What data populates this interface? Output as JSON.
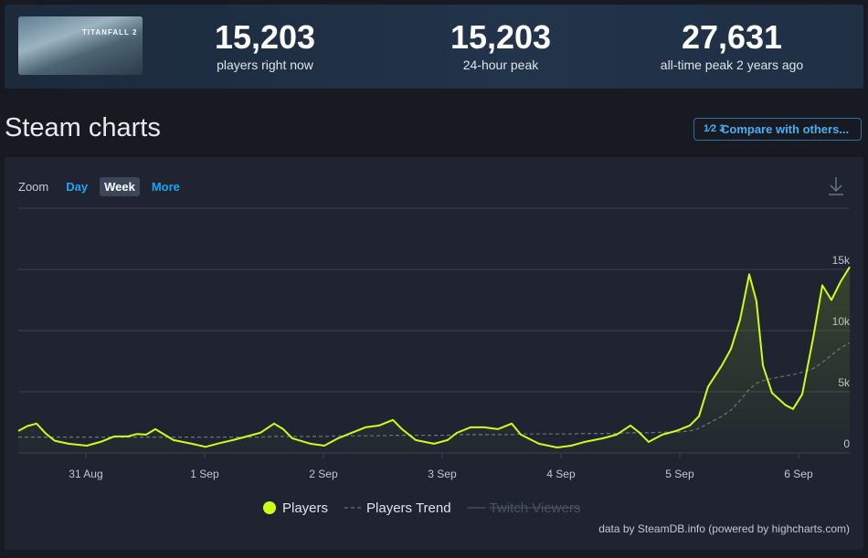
{
  "header": {
    "image_caption": "TITANFALL 2",
    "stats": [
      {
        "value": "15,203",
        "label": "players right now"
      },
      {
        "value": "15,203",
        "label": "24-hour peak"
      },
      {
        "value": "27,631",
        "label": "all-time peak 2 years ago"
      }
    ]
  },
  "page_title": "Steam charts",
  "compare_button": {
    "icon": "1⁄2 3",
    "label": "Compare with others..."
  },
  "zoom": {
    "label": "Zoom",
    "options": [
      "Day",
      "Week",
      "More"
    ],
    "selected": "Week"
  },
  "chart_data": {
    "type": "line",
    "x": [
      -0.569,
      -0.492,
      -0.415,
      -0.338,
      -0.262,
      -0.146,
      0.008,
      0.123,
      0.238,
      0.354,
      0.431,
      0.508,
      0.585,
      0.662,
      0.738,
      0.892,
      1.008,
      1.123,
      1.238,
      1.354,
      1.469,
      1.585,
      1.662,
      1.738,
      1.892,
      2.008,
      2.123,
      2.238,
      2.354,
      2.469,
      2.585,
      2.662,
      2.777,
      2.931,
      3.046,
      3.123,
      3.238,
      3.354,
      3.469,
      3.585,
      3.662,
      3.815,
      3.969,
      4.085,
      4.2,
      4.354,
      4.469,
      4.585,
      4.662,
      4.738,
      4.854,
      4.969,
      5.085,
      5.162,
      5.238,
      5.354,
      5.431,
      5.508,
      5.585,
      5.646,
      5.7,
      5.777,
      5.892,
      5.954,
      6.031,
      6.123,
      6.2,
      6.277,
      6.354,
      6.431
    ],
    "series": [
      {
        "name": "Players",
        "color": "#cbff1a",
        "values": [
          1800,
          2200,
          2400,
          1600,
          1000,
          750,
          600,
          900,
          1350,
          1350,
          1550,
          1500,
          1950,
          1500,
          1050,
          750,
          500,
          800,
          1050,
          1350,
          1650,
          2400,
          1950,
          1200,
          750,
          600,
          1200,
          1650,
          2100,
          2250,
          2700,
          1950,
          1050,
          750,
          1050,
          1650,
          2100,
          2100,
          1950,
          2400,
          1500,
          750,
          450,
          600,
          900,
          1200,
          1500,
          2250,
          1650,
          900,
          1500,
          1800,
          2250,
          3000,
          5400,
          7150,
          8500,
          10900,
          14600,
          12400,
          7150,
          4900,
          3900,
          3600,
          4800,
          9400,
          13700,
          12500,
          14000,
          15200
        ]
      },
      {
        "name": "Players Trend",
        "color": "#6b7280",
        "values": [
          1300,
          1300,
          1300,
          1300,
          1300,
          1300,
          1300,
          1300,
          1300,
          1300,
          1300,
          1300,
          1300,
          1300,
          1300,
          1300,
          1300,
          1300,
          1300,
          1300,
          1300,
          1350,
          1350,
          1350,
          1350,
          1350,
          1400,
          1400,
          1400,
          1400,
          1450,
          1450,
          1450,
          1450,
          1450,
          1500,
          1500,
          1500,
          1500,
          1500,
          1550,
          1550,
          1550,
          1550,
          1600,
          1600,
          1600,
          1650,
          1650,
          1650,
          1700,
          1700,
          1800,
          2000,
          2400,
          3000,
          3500,
          4300,
          5200,
          5700,
          5900,
          6100,
          6300,
          6400,
          6600,
          6900,
          7400,
          8000,
          8600,
          9000
        ]
      },
      {
        "name": "Twitch Viewers",
        "visible": false
      }
    ],
    "xlim": [
      -0.569,
      6.431
    ],
    "xticks": [
      {
        "value": 0,
        "label": "31 Aug"
      },
      {
        "value": 1,
        "label": "1 Sep"
      },
      {
        "value": 2,
        "label": "2 Sep"
      },
      {
        "value": 3,
        "label": "3 Sep"
      },
      {
        "value": 4,
        "label": "4 Sep"
      },
      {
        "value": 5,
        "label": "5 Sep"
      },
      {
        "value": 6,
        "label": "6 Sep"
      }
    ],
    "ylim": [
      0,
      20000
    ],
    "yticks": [
      0,
      {
        "value": 5000,
        "label": "5k"
      },
      {
        "value": 10000,
        "label": "10k"
      },
      {
        "value": 15000,
        "label": "15k"
      }
    ],
    "grid": true,
    "credit": "data by SteamDB.info (powered by highcharts.com)"
  }
}
